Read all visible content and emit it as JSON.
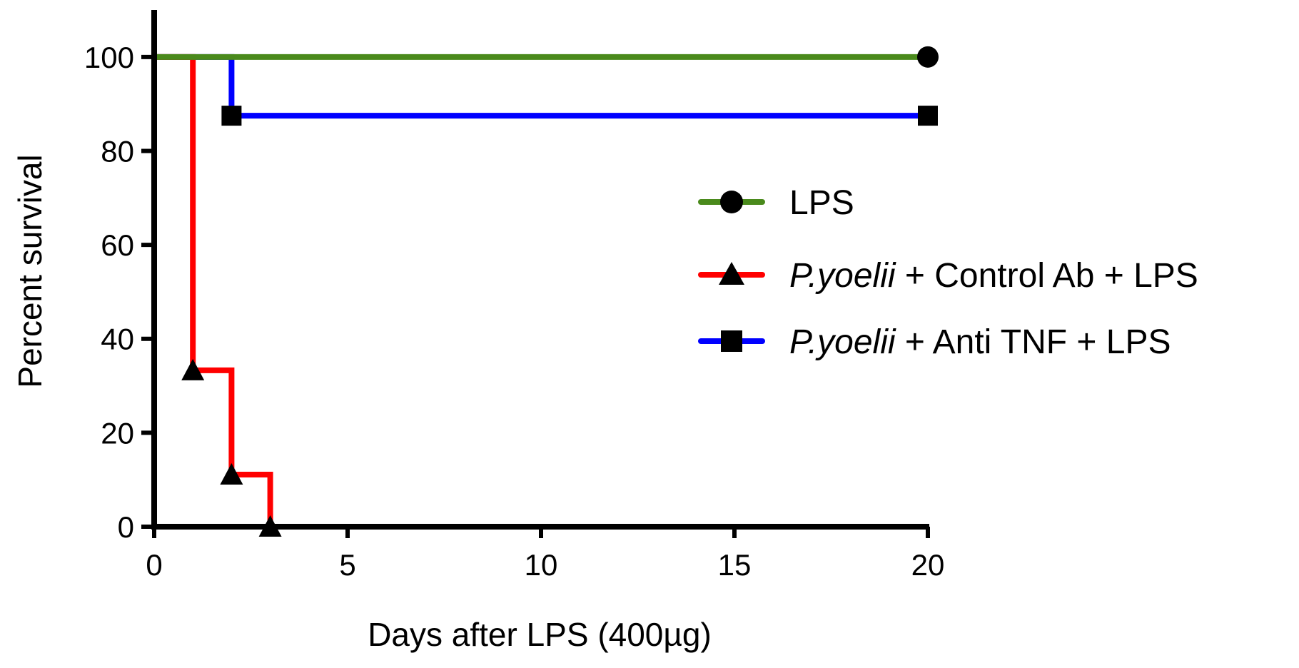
{
  "chart_data": {
    "type": "line",
    "step": true,
    "title": "",
    "xlabel": "Days after LPS (400µg)",
    "ylabel": "Percent survival",
    "xlim": [
      0,
      20
    ],
    "ylim": [
      0,
      110
    ],
    "xticks": [
      0,
      5,
      10,
      15,
      20
    ],
    "yticks": [
      0,
      20,
      40,
      60,
      80,
      100
    ],
    "xtick_labels": [
      "0",
      "5",
      "10",
      "15",
      "20"
    ],
    "ytick_labels": [
      "0",
      "20",
      "40",
      "60",
      "80",
      "100"
    ],
    "legend_position": "right",
    "series": [
      {
        "name": "LPS",
        "legend_italic": "",
        "legend_rest": "LPS",
        "color": "#4a8a1c",
        "marker": "circle",
        "points": [
          [
            0,
            100
          ],
          [
            20,
            100
          ]
        ],
        "marker_points": [
          [
            20,
            100
          ]
        ]
      },
      {
        "name": "P.yoelii + Control Ab + LPS",
        "legend_italic": "P.yoelii",
        "legend_rest": " + Control Ab + LPS",
        "color": "#ff0000",
        "marker": "triangle",
        "points": [
          [
            0,
            100
          ],
          [
            1,
            100
          ],
          [
            1,
            33.3
          ],
          [
            2,
            33.3
          ],
          [
            2,
            11.1
          ],
          [
            3,
            11.1
          ],
          [
            3,
            0
          ]
        ],
        "marker_points": [
          [
            1,
            33.3
          ],
          [
            2,
            11.1
          ],
          [
            3,
            0
          ]
        ]
      },
      {
        "name": "P.yoelii + Anti TNF + LPS",
        "legend_italic": "P.yoelii",
        "legend_rest": " + Anti TNF + LPS",
        "color": "#0000ff",
        "marker": "square",
        "points": [
          [
            0,
            100
          ],
          [
            2,
            100
          ],
          [
            2,
            87.5
          ],
          [
            20,
            87.5
          ]
        ],
        "marker_points": [
          [
            2,
            87.5
          ],
          [
            20,
            87.5
          ]
        ]
      }
    ]
  }
}
